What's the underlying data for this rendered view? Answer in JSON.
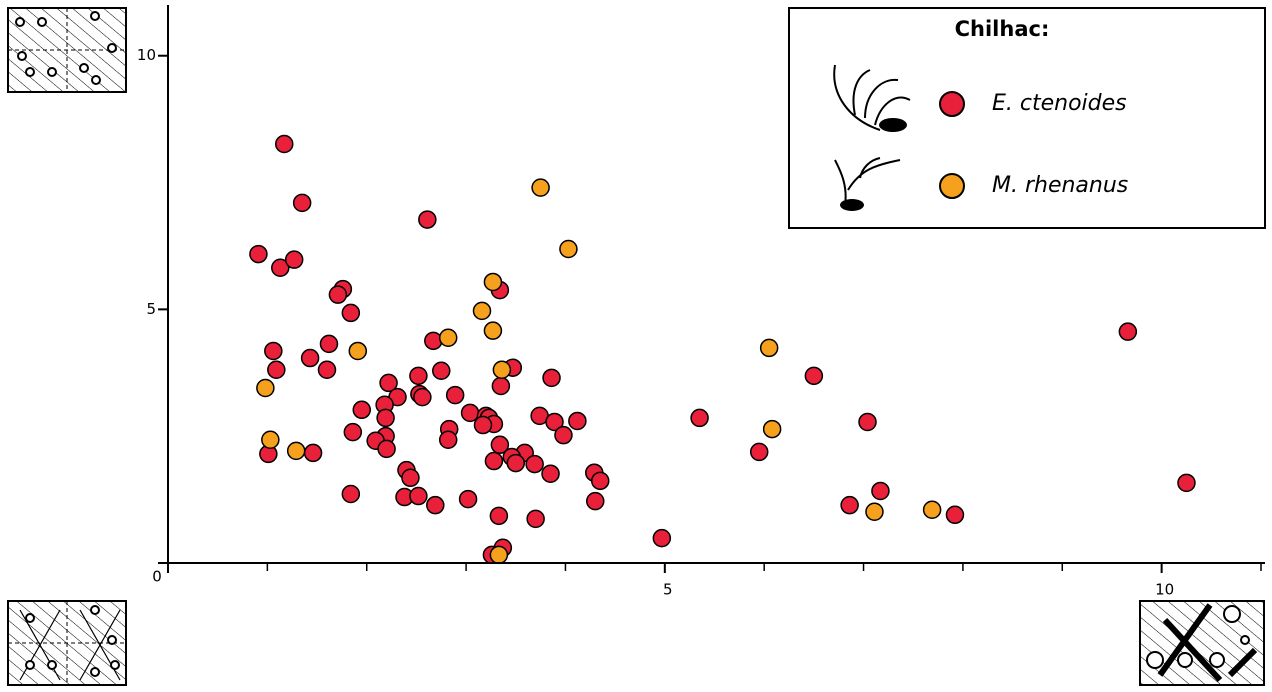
{
  "chart_data": {
    "type": "scatter",
    "legend_title": "Chilhac:",
    "legend": "upper right",
    "grid": false,
    "xlim": [
      0,
      11
    ],
    "ylim": [
      0,
      11
    ],
    "xticks": [
      0,
      5,
      10
    ],
    "yticks": [
      0,
      5,
      10
    ],
    "xminor_ticks": [
      1,
      2,
      3,
      4,
      6,
      7,
      8,
      9,
      11
    ],
    "series": [
      {
        "name": "E. ctenoides",
        "color": "#e8203a",
        "x": [
          1.17,
          1.35,
          0.91,
          1.13,
          1.27,
          2.61,
          1.76,
          1.71,
          1.84,
          3.34,
          1.62,
          1.43,
          1.06,
          1.09,
          1.6,
          2.67,
          2.75,
          3.47,
          3.86,
          3.35,
          2.22,
          2.52,
          2.53,
          2.56,
          2.31,
          2.89,
          2.18,
          1.95,
          2.19,
          3.04,
          3.2,
          3.23,
          3.28,
          3.17,
          3.74,
          3.89,
          4.12,
          3.98,
          2.83,
          2.82,
          1.86,
          2.19,
          2.09,
          2.2,
          3.34,
          3.59,
          3.46,
          3.5,
          3.28,
          3.69,
          1.46,
          1.01,
          2.4,
          2.44,
          3.85,
          4.29,
          4.35,
          1.84,
          2.38,
          2.52,
          2.69,
          3.02,
          4.3,
          3.33,
          3.7,
          3.26,
          3.37,
          4.97,
          5.35,
          5.95,
          6.5,
          7.04,
          7.17,
          6.86,
          7.92,
          9.66,
          10.25
        ],
        "values": [
          8.26,
          7.1,
          6.09,
          5.82,
          5.98,
          6.77,
          5.4,
          5.29,
          4.93,
          5.38,
          4.32,
          4.04,
          4.18,
          3.81,
          3.81,
          4.38,
          3.79,
          3.85,
          3.65,
          3.49,
          3.55,
          3.69,
          3.33,
          3.27,
          3.27,
          3.31,
          3.12,
          3.02,
          2.86,
          2.96,
          2.9,
          2.86,
          2.74,
          2.72,
          2.9,
          2.78,
          2.8,
          2.52,
          2.64,
          2.43,
          2.58,
          2.5,
          2.41,
          2.25,
          2.33,
          2.17,
          2.09,
          1.97,
          2.01,
          1.95,
          2.17,
          2.15,
          1.83,
          1.68,
          1.76,
          1.78,
          1.62,
          1.36,
          1.3,
          1.32,
          1.14,
          1.26,
          1.22,
          0.93,
          0.87,
          0.16,
          0.3,
          0.49,
          2.86,
          2.19,
          3.69,
          2.78,
          1.42,
          1.14,
          0.95,
          4.56,
          1.58
        ]
      },
      {
        "name": "M. rhenanus",
        "color": "#f6a11d",
        "x": [
          3.75,
          4.03,
          3.27,
          3.16,
          3.27,
          2.82,
          1.91,
          0.98,
          3.36,
          1.03,
          1.29,
          6.05,
          6.08,
          7.11,
          7.69,
          3.33
        ],
        "values": [
          7.4,
          6.19,
          5.54,
          4.97,
          4.58,
          4.44,
          4.18,
          3.45,
          3.81,
          2.43,
          2.21,
          4.24,
          2.64,
          1.01,
          1.05,
          0.16
        ]
      }
    ]
  }
}
